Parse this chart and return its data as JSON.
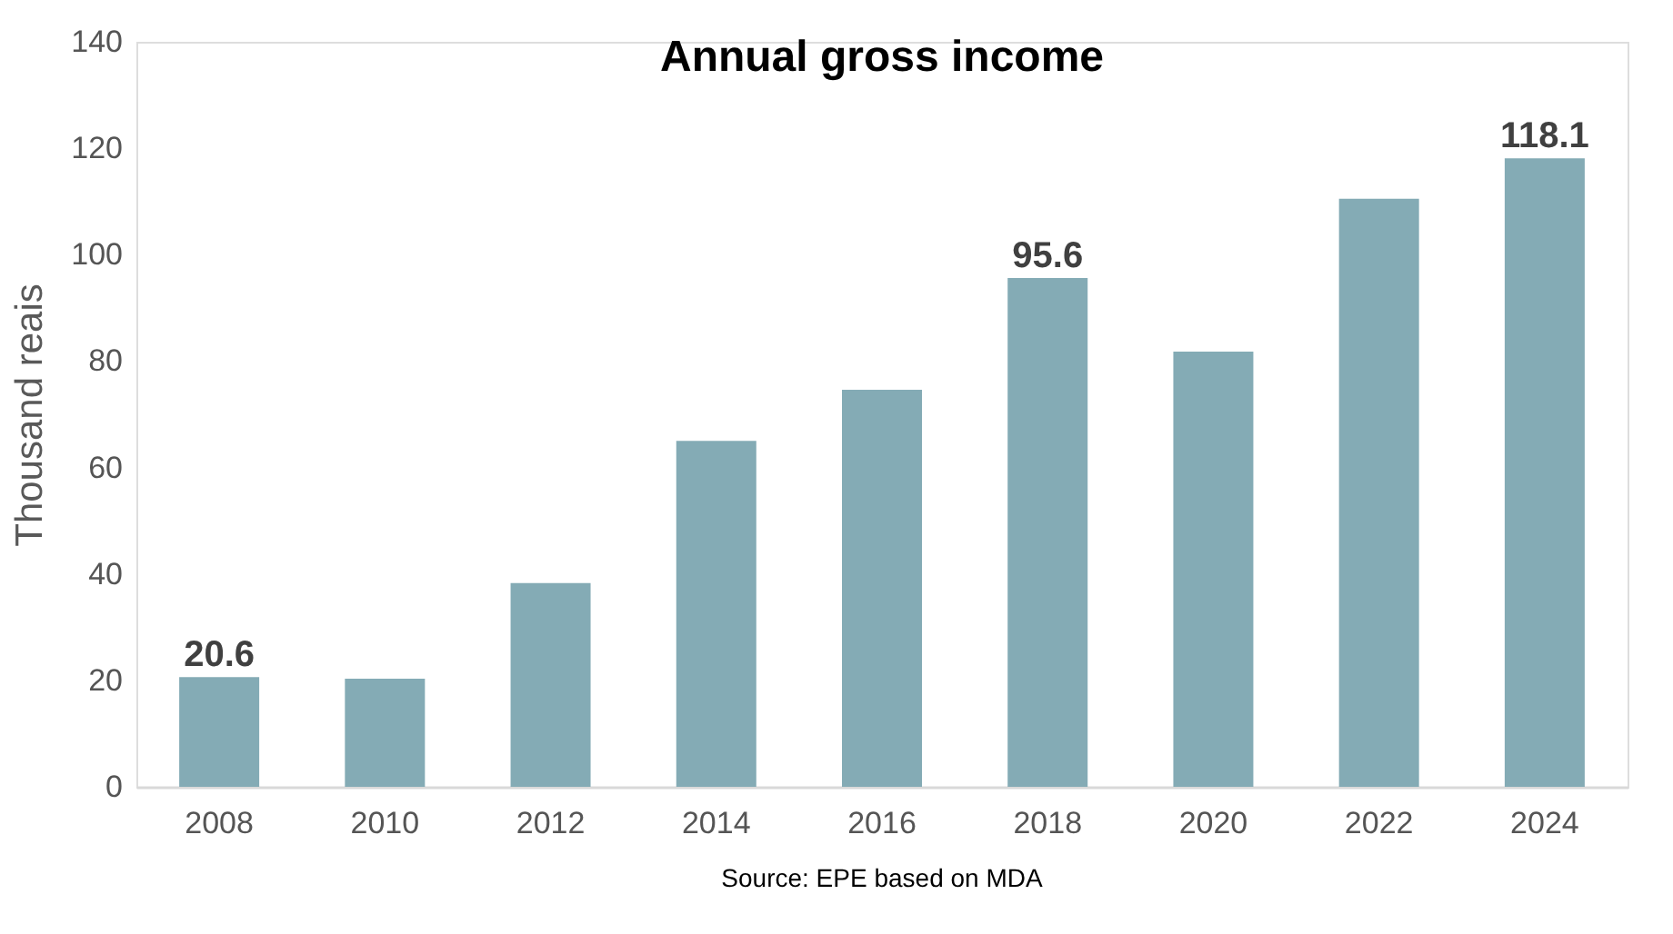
{
  "chart_data": {
    "type": "bar",
    "title": "Annual gross income",
    "ylabel": "Thousand reais",
    "categories": [
      "2008",
      "2010",
      "2012",
      "2014",
      "2016",
      "2018",
      "2020",
      "2022",
      "2024"
    ],
    "values": [
      20.6,
      20.3,
      38.3,
      65.0,
      74.6,
      95.6,
      81.8,
      110.5,
      118.1
    ],
    "value_labels": [
      "20.6",
      null,
      null,
      null,
      null,
      "95.6",
      null,
      null,
      "118.1"
    ],
    "color": "#84abb5",
    "ylim": [
      0,
      140
    ],
    "yticks": [
      0,
      20,
      40,
      60,
      80,
      100,
      120,
      140
    ],
    "grid": false,
    "annotations": [
      "Source: EPE based on MDA"
    ]
  }
}
